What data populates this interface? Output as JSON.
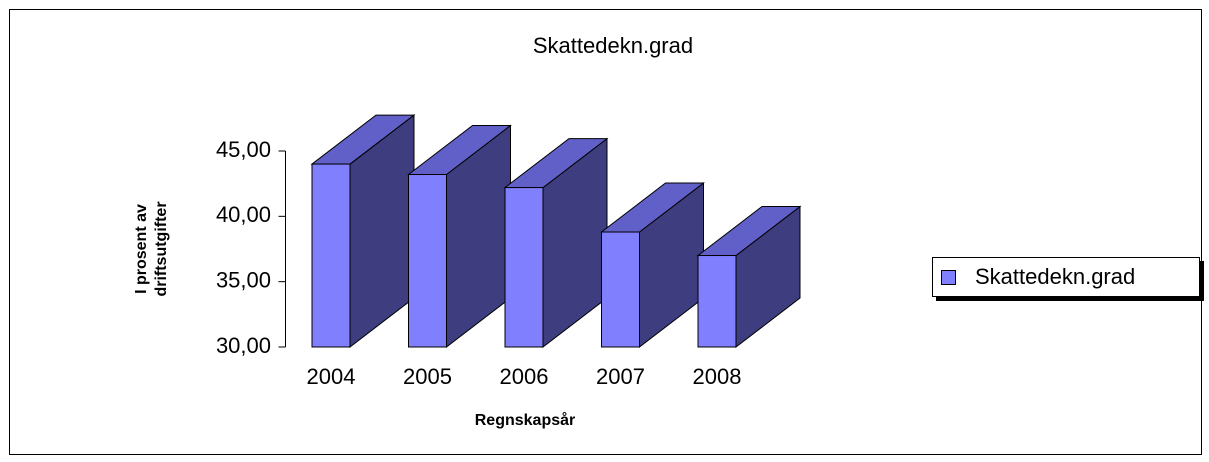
{
  "chart_data": {
    "type": "bar3d",
    "title": "Skattedekn.grad",
    "categories": [
      "2004",
      "2005",
      "2006",
      "2007",
      "2008"
    ],
    "series": [
      {
        "name": "Skattedekn.grad",
        "color": "#8080ff",
        "values": [
          44.0,
          43.2,
          42.2,
          38.8,
          37.0
        ]
      }
    ],
    "ylim": [
      30,
      45
    ],
    "yticks": [
      {
        "value": 30,
        "label": "30,00"
      },
      {
        "value": 35,
        "label": "35,00"
      },
      {
        "value": 40,
        "label": "40,00"
      },
      {
        "value": 45,
        "label": "45,00"
      }
    ],
    "y_label_lines": [
      "I prosent av",
      "driftsutgifter"
    ],
    "x_label": "Regnskapsår",
    "legend": "right"
  }
}
